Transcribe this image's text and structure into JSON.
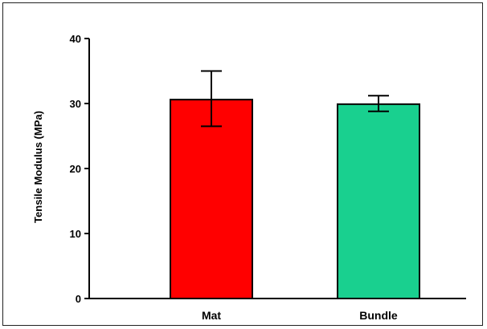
{
  "chart_data": {
    "type": "bar",
    "title": "",
    "xlabel": "",
    "ylabel": "Tensile Modulus (MPa)",
    "ylim": [
      0,
      40
    ],
    "yticks": [
      0,
      10,
      20,
      30,
      40
    ],
    "categories": [
      "Mat",
      "Bundle"
    ],
    "values": [
      30.6,
      29.9
    ],
    "error_low": [
      26.5,
      28.8
    ],
    "error_high": [
      35.0,
      31.2
    ],
    "colors": [
      "#ff0000",
      "#19d08f"
    ],
    "grid": false,
    "legend": "none"
  }
}
